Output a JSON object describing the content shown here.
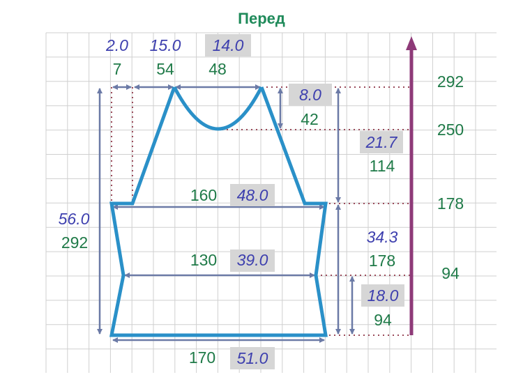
{
  "title": "Перед",
  "colors": {
    "outline": "#2a90c8",
    "cm_text": "#3d3fae",
    "stitch_text": "#1f7a48",
    "height_arrow": "#8e3a78",
    "dimension_arrow": "#6b7aa6"
  },
  "top": {
    "side_cm": "2.0",
    "side_stitches": "7",
    "shoulder_cm": "15.0",
    "shoulder_stitches": "54",
    "neck_cm": "14.0",
    "neck_stitches": "48"
  },
  "neck_depth": {
    "cm": "8.0",
    "rows": "42"
  },
  "armhole": {
    "cm": "21.7",
    "rows": "114"
  },
  "chest": {
    "stitches": "160",
    "cm": "48.0"
  },
  "total_height": {
    "cm": "56.0",
    "rows": "292"
  },
  "waist": {
    "stitches": "130",
    "cm": "39.0"
  },
  "body_to_armhole": {
    "cm": "34.3",
    "rows": "178"
  },
  "hip_to_waist": {
    "cm": "18.0",
    "rows": "94"
  },
  "bottom": {
    "stitches": "170",
    "cm": "51.0"
  },
  "row_markers": [
    "292",
    "250",
    "178",
    "94"
  ]
}
